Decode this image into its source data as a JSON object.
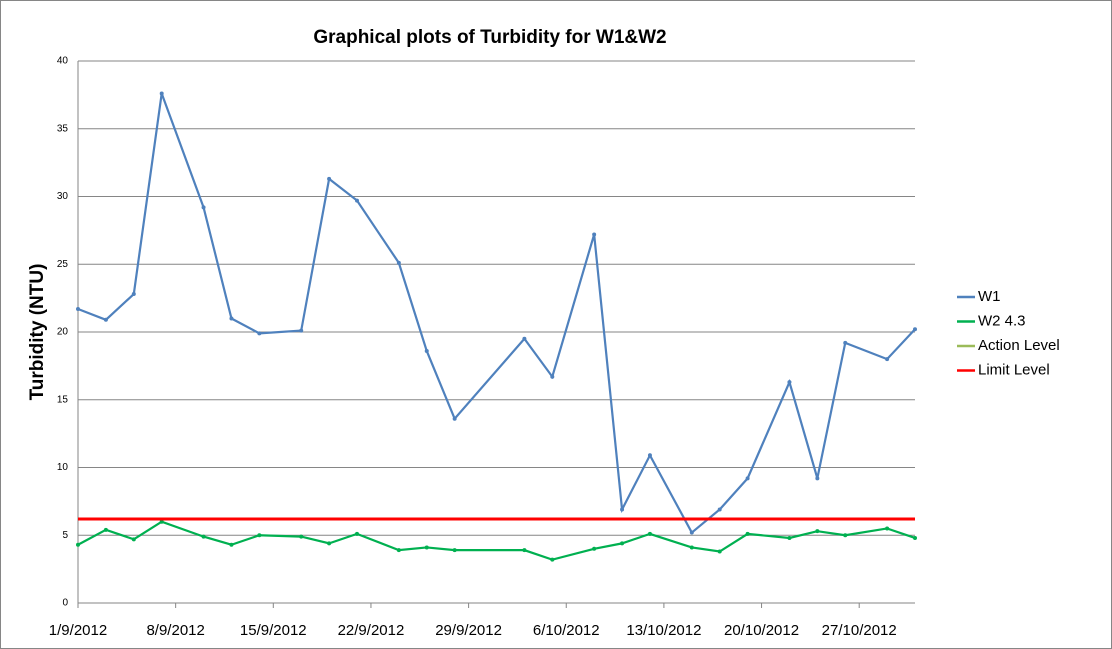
{
  "chart_data": {
    "type": "line",
    "title": "Graphical plots of Turbidity for W1&W2",
    "y_label": "Turbidity (NTU)",
    "x": [
      "1/9/2012",
      "3/9/2012",
      "5/9/2012",
      "7/9/2012",
      "10/9/2012",
      "12/9/2012",
      "14/9/2012",
      "17/9/2012",
      "19/9/2012",
      "21/9/2012",
      "24/9/2012",
      "26/9/2012",
      "28/9/2012",
      "3/10/2012",
      "5/10/2012",
      "8/10/2012",
      "10/10/2012",
      "12/10/2012",
      "15/10/2012",
      "17/10/2012",
      "19/10/2012",
      "22/10/2012",
      "24/10/2012",
      "26/10/2012",
      "29/10/2012",
      "31/10/2012"
    ],
    "series": [
      {
        "name": "W1",
        "color": "#4f81bd",
        "markers": true,
        "values": [
          21.7,
          20.9,
          22.8,
          37.6,
          29.2,
          21.0,
          19.9,
          20.1,
          31.3,
          29.7,
          25.1,
          18.6,
          13.6,
          19.5,
          16.7,
          27.2,
          6.9,
          10.9,
          5.2,
          6.9,
          9.2,
          16.3,
          9.2,
          19.2,
          18.0,
          20.2
        ]
      },
      {
        "name": "W2 4.3",
        "color": "#00b050",
        "markers": true,
        "values": [
          4.3,
          5.4,
          4.7,
          6.0,
          4.9,
          4.3,
          5.0,
          4.9,
          4.4,
          5.1,
          3.9,
          4.1,
          3.9,
          3.9,
          3.2,
          4.0,
          4.4,
          5.1,
          4.1,
          3.8,
          5.1,
          4.8,
          5.3,
          5.0,
          5.5,
          4.8
        ]
      },
      {
        "name": "Action Level",
        "color": "#9bbb59",
        "markers": false,
        "values": [
          6.2,
          6.2,
          6.2,
          6.2,
          6.2,
          6.2,
          6.2,
          6.2,
          6.2,
          6.2,
          6.2,
          6.2,
          6.2,
          6.2,
          6.2,
          6.2,
          6.2,
          6.2,
          6.2,
          6.2,
          6.2,
          6.2,
          6.2,
          6.2,
          6.2,
          6.2
        ]
      },
      {
        "name": "Limit Level",
        "color": "#ff0000",
        "markers": false,
        "values": [
          6.2,
          6.2,
          6.2,
          6.2,
          6.2,
          6.2,
          6.2,
          6.2,
          6.2,
          6.2,
          6.2,
          6.2,
          6.2,
          6.2,
          6.2,
          6.2,
          6.2,
          6.2,
          6.2,
          6.2,
          6.2,
          6.2,
          6.2,
          6.2,
          6.2,
          6.2
        ]
      }
    ],
    "xlim": [
      "1/9/2012",
      "31/10/2012"
    ],
    "xticks": [
      "1/9/2012",
      "8/9/2012",
      "15/9/2012",
      "22/9/2012",
      "29/9/2012",
      "6/10/2012",
      "13/10/2012",
      "20/10/2012",
      "27/10/2012"
    ],
    "ylim": [
      0,
      40
    ],
    "yticks": [
      0,
      5,
      10,
      15,
      20,
      25,
      30,
      35,
      40
    ],
    "grid": true,
    "legend": "right"
  }
}
